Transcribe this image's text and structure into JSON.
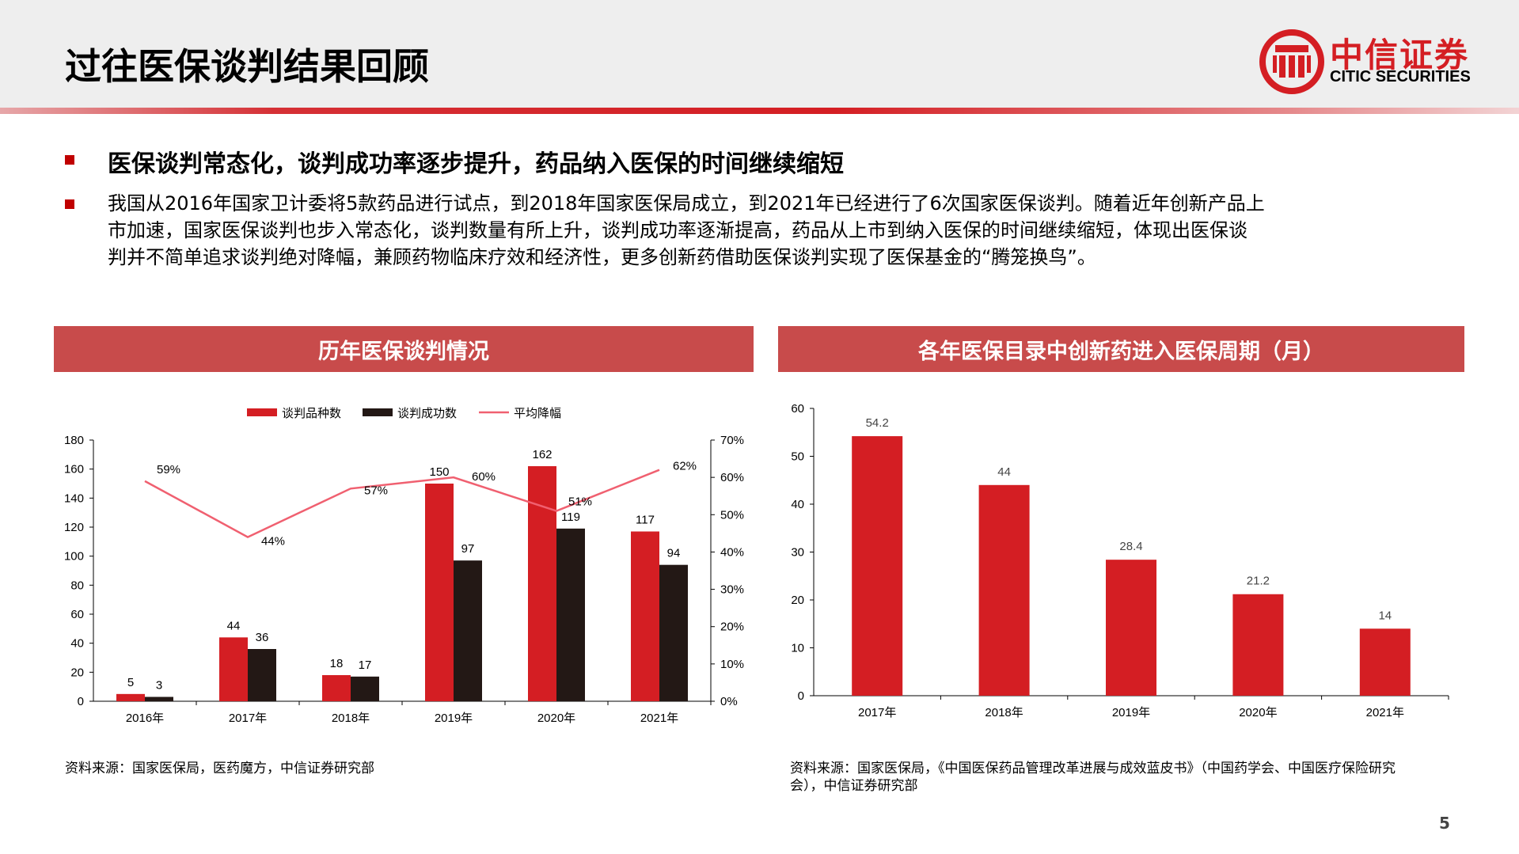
{
  "header": {
    "title": "过往医保谈判结果回顾"
  },
  "logo": {
    "cn": "中信证券",
    "en": "CITIC SECURITIES"
  },
  "headline": "医保谈判常态化，谈判成功率逐步提升，药品纳入医保的时间继续缩短",
  "paragraph_lines": [
    "我国从2016年国家卫计委将5款药品进行试点，到2018年国家医保局成立，到2021年已经进行了6次国家医保谈判。随着近年创新产品上",
    "市加速，国家医保谈判也步入常态化，谈判数量有所上升，谈判成功率逐渐提高，药品从上市到纳入医保的时间继续缩短，体现出医保谈",
    "判并不简单追求谈判绝对降幅，兼顾药物临床疗效和经济性，更多创新药借助医保谈判实现了医保基金的“腾笼换鸟”。"
  ],
  "colors": {
    "bar_red": "#d41e23",
    "bar_black": "#231815",
    "line_pink": "#f06070",
    "banner": "#c84b4b"
  },
  "chart_data": [
    {
      "type": "bar",
      "title": "历年医保谈判情况",
      "categories": [
        "2016年",
        "2017年",
        "2018年",
        "2019年",
        "2020年",
        "2021年"
      ],
      "series": [
        {
          "name": "谈判品种数",
          "kind": "bar",
          "axis": "left",
          "values": [
            5,
            44,
            18,
            150,
            162,
            117
          ]
        },
        {
          "name": "谈判成功数",
          "kind": "bar",
          "axis": "left",
          "values": [
            3,
            36,
            17,
            97,
            119,
            94
          ]
        },
        {
          "name": "平均降幅",
          "kind": "line",
          "axis": "right",
          "values": [
            59,
            44,
            57,
            60,
            51,
            62
          ]
        }
      ],
      "ylim": [
        0,
        180
      ],
      "yticks": [
        "0",
        "20",
        "40",
        "60",
        "80",
        "100",
        "120",
        "140",
        "160",
        "180"
      ],
      "y2lim": [
        0,
        70
      ],
      "y2ticks": [
        "0%",
        "10%",
        "20%",
        "30%",
        "40%",
        "50%",
        "60%",
        "70%"
      ],
      "line_labels": [
        "59%",
        "44%",
        "57%",
        "60%",
        "51%",
        "62%"
      ],
      "legend": "top-center",
      "grid": false,
      "source": "资料来源：国家医保局，医药魔方，中信证券研究部"
    },
    {
      "type": "bar",
      "title": "各年医保目录中创新药进入医保周期（月）",
      "categories": [
        "2017年",
        "2018年",
        "2019年",
        "2020年",
        "2021年"
      ],
      "values": [
        54.2,
        44,
        28.4,
        21.2,
        14
      ],
      "value_labels": [
        "54.2",
        "44",
        "28.4",
        "21.2",
        "14"
      ],
      "ylim": [
        0,
        60
      ],
      "yticks": [
        "0",
        "10",
        "20",
        "30",
        "40",
        "50",
        "60"
      ],
      "grid": false,
      "source_lines": [
        "资料来源：国家医保局，《中国医保药品管理改革进展与成效蓝皮书》（中国药学会、中国医疗保险研究",
        "会），中信证券研究部"
      ]
    }
  ],
  "page_number": "5"
}
